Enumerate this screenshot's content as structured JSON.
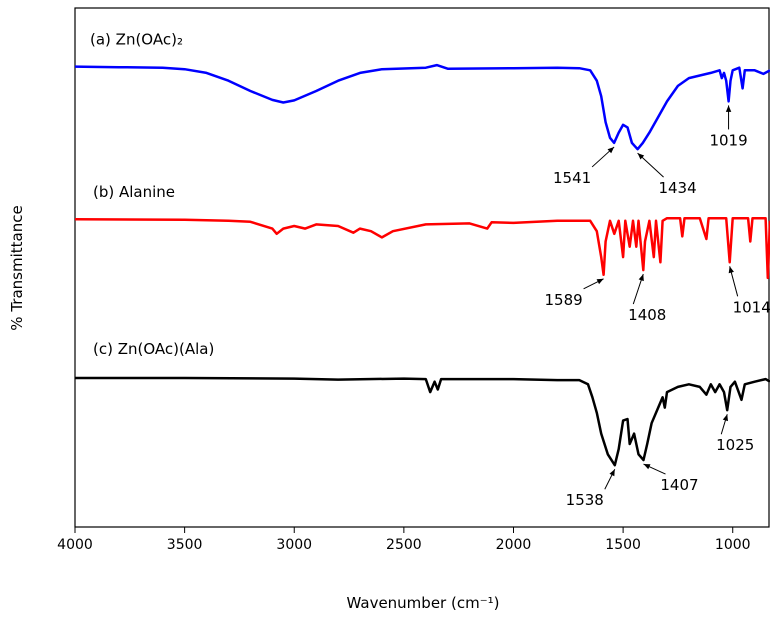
{
  "chart_data": {
    "type": "line",
    "xlabel": "Wavenumber (cm⁻¹)",
    "ylabel": "% Transmittance",
    "xlim": [
      4000,
      830
    ],
    "xticks": [
      4000,
      3500,
      3000,
      2500,
      2000,
      1500,
      1000
    ],
    "ylim": [
      0,
      100
    ],
    "series": [
      {
        "name": "(a) Zn(OAc)₂",
        "color": "#0000ff",
        "x": [
          4000,
          3800,
          3600,
          3500,
          3400,
          3300,
          3200,
          3100,
          3050,
          3000,
          2900,
          2800,
          2700,
          2600,
          2400,
          2350,
          2300,
          2000,
          1800,
          1700,
          1650,
          1620,
          1600,
          1580,
          1560,
          1541,
          1520,
          1500,
          1480,
          1460,
          1434,
          1410,
          1380,
          1340,
          1300,
          1250,
          1200,
          1150,
          1100,
          1060,
          1050,
          1040,
          1030,
          1019,
          1010,
          1000,
          970,
          955,
          945,
          900,
          860,
          830
        ],
        "values": [
          88.7,
          88.6,
          88.5,
          88.2,
          87.5,
          86,
          84,
          82.3,
          81.8,
          82.2,
          84,
          86,
          87.5,
          88.2,
          88.5,
          89,
          88.3,
          88.4,
          88.5,
          88.4,
          88,
          86,
          83,
          78,
          75,
          74,
          76,
          77.5,
          77,
          74,
          72.8,
          74,
          76,
          79,
          82,
          85,
          86.5,
          87,
          87.5,
          88,
          86.5,
          87.5,
          86,
          82,
          86,
          88,
          88.5,
          84.5,
          88,
          88,
          87.3,
          88
        ],
        "peaks": [
          1541,
          1434,
          1019
        ]
      },
      {
        "name": "(b) Alanine",
        "color": "#ff0000",
        "x": [
          4000,
          3500,
          3300,
          3200,
          3100,
          3080,
          3050,
          3000,
          2950,
          2900,
          2800,
          2730,
          2700,
          2650,
          2600,
          2550,
          2400,
          2200,
          2120,
          2100,
          2000,
          1800,
          1650,
          1620,
          1600,
          1589,
          1580,
          1560,
          1540,
          1520,
          1500,
          1490,
          1470,
          1455,
          1440,
          1430,
          1408,
          1400,
          1380,
          1360,
          1350,
          1330,
          1320,
          1300,
          1240,
          1230,
          1220,
          1150,
          1120,
          1110,
          1030,
          1014,
          1000,
          930,
          920,
          910,
          850,
          840,
          830
        ],
        "values": [
          59.3,
          59.2,
          59,
          58.8,
          57.5,
          56.5,
          57.5,
          58,
          57.5,
          58.3,
          58,
          56.7,
          57.5,
          57,
          55.8,
          57,
          58.3,
          58.5,
          57.5,
          58.7,
          58.6,
          59,
          59,
          57,
          52,
          48.6,
          55,
          59,
          56.5,
          59,
          52,
          59,
          54,
          59,
          54,
          59,
          49.5,
          55,
          59,
          52,
          59,
          51,
          59,
          59.5,
          59.5,
          56,
          59.5,
          59.5,
          55.5,
          59.5,
          59.5,
          51,
          59.5,
          59.5,
          55,
          59.5,
          59.5,
          48,
          59
        ],
        "peaks": [
          1589,
          1408,
          1014
        ]
      },
      {
        "name": "(c) Zn(OAc)(Ala)",
        "color": "#000000",
        "x": [
          4000,
          3500,
          3000,
          2800,
          2500,
          2400,
          2380,
          2360,
          2345,
          2330,
          2000,
          1800,
          1700,
          1660,
          1640,
          1620,
          1600,
          1570,
          1538,
          1520,
          1500,
          1480,
          1470,
          1450,
          1430,
          1407,
          1390,
          1370,
          1340,
          1320,
          1310,
          1300,
          1250,
          1200,
          1150,
          1120,
          1100,
          1080,
          1060,
          1040,
          1025,
          1010,
          990,
          960,
          945,
          900,
          850,
          830
        ],
        "values": [
          28.7,
          28.7,
          28.6,
          28.4,
          28.6,
          28.5,
          26,
          28,
          26.5,
          28.5,
          28.5,
          28.3,
          28.3,
          27.5,
          25,
          22,
          18,
          14,
          11.9,
          15,
          20.5,
          20.8,
          16,
          18,
          14,
          12.9,
          16,
          20,
          23,
          25,
          23,
          26,
          27,
          27.5,
          27,
          25.5,
          27.5,
          26,
          27.5,
          26,
          22.5,
          27,
          28,
          24.5,
          27.5,
          28,
          28.5,
          28
        ],
        "peaks": [
          1538,
          1407,
          1025
        ]
      }
    ]
  }
}
